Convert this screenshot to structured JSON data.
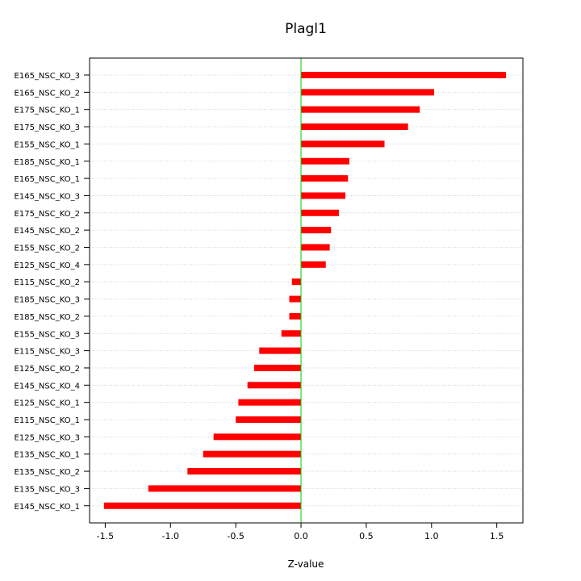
{
  "chart_data": {
    "type": "bar",
    "orientation": "horizontal",
    "title": "Plagl1",
    "xlabel": "Z-value",
    "ylabel": "",
    "xlim": [
      -1.62,
      1.7
    ],
    "xticks": [
      -1.5,
      -1.0,
      -0.5,
      0.0,
      0.5,
      1.0,
      1.5
    ],
    "xtick_labels": [
      "-1.5",
      "-1.0",
      "-0.5",
      "0.0",
      "0.5",
      "1.0",
      "1.5"
    ],
    "grid": "horizontal dotted",
    "reference_line": 0,
    "bar_color": "#ff0000",
    "reference_line_color": "#00cc00",
    "categories": [
      "E165_NSC_KO_3",
      "E165_NSC_KO_2",
      "E175_NSC_KO_1",
      "E175_NSC_KO_3",
      "E155_NSC_KO_1",
      "E185_NSC_KO_1",
      "E165_NSC_KO_1",
      "E145_NSC_KO_3",
      "E175_NSC_KO_2",
      "E145_NSC_KO_2",
      "E155_NSC_KO_2",
      "E125_NSC_KO_4",
      "E115_NSC_KO_2",
      "E185_NSC_KO_3",
      "E185_NSC_KO_2",
      "E155_NSC_KO_3",
      "E115_NSC_KO_3",
      "E125_NSC_KO_2",
      "E145_NSC_KO_4",
      "E125_NSC_KO_1",
      "E115_NSC_KO_1",
      "E125_NSC_KO_3",
      "E135_NSC_KO_1",
      "E135_NSC_KO_2",
      "E135_NSC_KO_3",
      "E145_NSC_KO_1"
    ],
    "values": [
      1.57,
      1.02,
      0.91,
      0.82,
      0.64,
      0.37,
      0.36,
      0.34,
      0.29,
      0.23,
      0.22,
      0.19,
      -0.07,
      -0.09,
      -0.09,
      -0.15,
      -0.32,
      -0.36,
      -0.41,
      -0.48,
      -0.5,
      -0.67,
      -0.75,
      -0.87,
      -1.17,
      -1.51
    ]
  }
}
